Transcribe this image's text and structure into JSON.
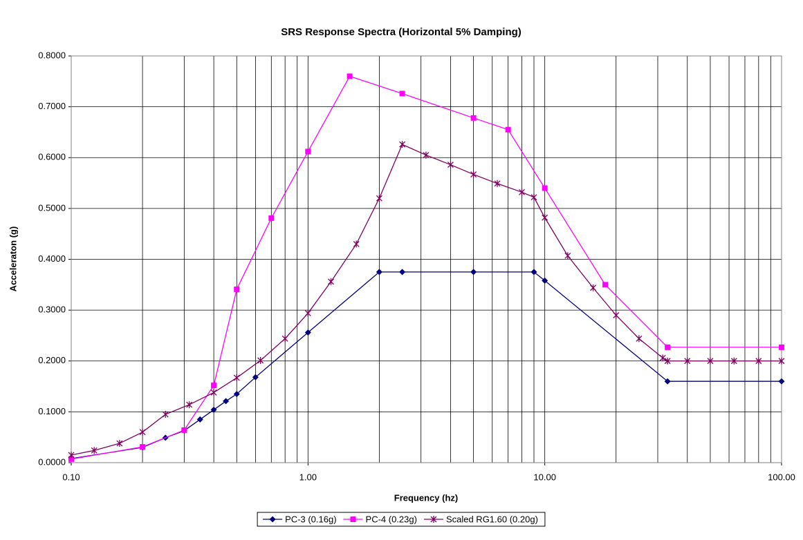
{
  "chart_data": {
    "type": "line",
    "title": "SRS Response Spectra (Horizontal 5% Damping)",
    "xlabel": "Frequency (hz)",
    "ylabel": "Acceleraton (g)",
    "xscale": "log",
    "xlim": [
      0.1,
      100
    ],
    "xticks": [
      {
        "value": 0.1,
        "label": "0.10"
      },
      {
        "value": 1,
        "label": "1.00"
      },
      {
        "value": 10,
        "label": "10.00"
      },
      {
        "value": 100,
        "label": "100.00"
      }
    ],
    "xminorticks": [
      0.2,
      0.3,
      0.4,
      0.5,
      0.6,
      0.7,
      0.8,
      0.9,
      2,
      3,
      4,
      5,
      6,
      7,
      8,
      9,
      20,
      30,
      40,
      50,
      60,
      70,
      80,
      90
    ],
    "ylim": [
      0,
      0.8
    ],
    "yticks": [
      {
        "value": 0,
        "label": "0.0000"
      },
      {
        "value": 0.1,
        "label": "0.1000"
      },
      {
        "value": 0.2,
        "label": "0.2000"
      },
      {
        "value": 0.3,
        "label": "0.3000"
      },
      {
        "value": 0.4,
        "label": "0.4000"
      },
      {
        "value": 0.5,
        "label": "0.5000"
      },
      {
        "value": 0.6,
        "label": "0.6000"
      },
      {
        "value": 0.7,
        "label": "0.7000"
      },
      {
        "value": 0.8,
        "label": "0.8000"
      }
    ],
    "grid": true,
    "legend": "bottom",
    "series": [
      {
        "name": "PC-3 (0.16g)",
        "color": "#000080",
        "marker": "diamond",
        "x": [
          0.1,
          0.2,
          0.25,
          0.3,
          0.35,
          0.4,
          0.45,
          0.5,
          0.6,
          1.0,
          2.0,
          2.5,
          5,
          9,
          10,
          33,
          100
        ],
        "values": [
          0.008,
          0.03,
          0.049,
          0.063,
          0.085,
          0.104,
          0.121,
          0.135,
          0.168,
          0.256,
          0.375,
          0.375,
          0.375,
          0.375,
          0.358,
          0.16,
          0.16
        ]
      },
      {
        "name": "PC-4 (0.23g)",
        "color": "#ff00ff",
        "marker": "square",
        "x": [
          0.1,
          0.2,
          0.3,
          0.4,
          0.5,
          0.7,
          1.0,
          1.5,
          2.5,
          5,
          7,
          10,
          18,
          33,
          100
        ],
        "values": [
          0.007,
          0.031,
          0.064,
          0.152,
          0.341,
          0.481,
          0.612,
          0.76,
          0.726,
          0.678,
          0.655,
          0.54,
          0.35,
          0.227,
          0.227
        ]
      },
      {
        "name": "Scaled RG1.60 (0.20g)",
        "color": "#800060",
        "marker": "asterisk",
        "x": [
          0.1,
          0.125,
          0.16,
          0.2,
          0.25,
          0.315,
          0.4,
          0.5,
          0.63,
          0.8,
          1.0,
          1.25,
          1.6,
          2.0,
          2.5,
          3.15,
          4,
          5,
          6.3,
          8,
          9,
          10,
          12.5,
          16,
          20,
          25,
          31.5,
          33,
          40,
          50,
          63,
          80,
          100
        ],
        "values": [
          0.015,
          0.024,
          0.038,
          0.06,
          0.095,
          0.114,
          0.138,
          0.167,
          0.201,
          0.244,
          0.294,
          0.356,
          0.43,
          0.52,
          0.626,
          0.605,
          0.586,
          0.567,
          0.549,
          0.532,
          0.522,
          0.482,
          0.407,
          0.344,
          0.29,
          0.244,
          0.206,
          0.2,
          0.2,
          0.2,
          0.2,
          0.2,
          0.2
        ]
      }
    ]
  }
}
